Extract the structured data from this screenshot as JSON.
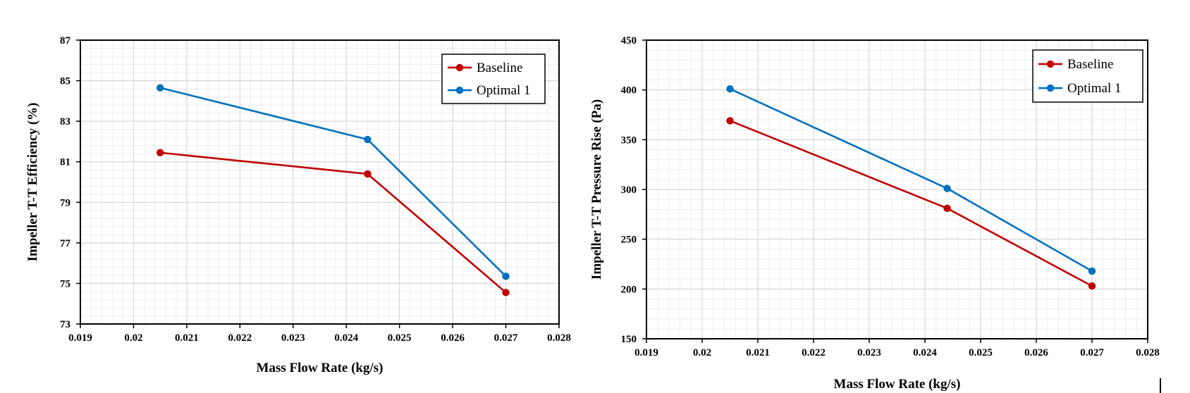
{
  "chart_data": [
    {
      "type": "line",
      "xlabel": "Mass Flow Rate (kg/s)",
      "ylabel": "Impeller T-T Efficiency (%)",
      "xlim": [
        0.019,
        0.028
      ],
      "ylim": [
        73,
        87
      ],
      "x_ticks": [
        "0.019",
        "0.02",
        "0.021",
        "0.022",
        "0.023",
        "0.024",
        "0.025",
        "0.026",
        "0.027",
        "0.028"
      ],
      "y_ticks": [
        "73",
        "75",
        "77",
        "79",
        "81",
        "83",
        "85",
        "87"
      ],
      "x": [
        0.0205,
        0.0244,
        0.027
      ],
      "series": [
        {
          "name": "Baseline",
          "color": "#c00000",
          "values": [
            81.45,
            80.4,
            74.55
          ]
        },
        {
          "name": "Optimal 1",
          "color": "#0070c0",
          "values": [
            84.65,
            82.1,
            75.35
          ]
        }
      ],
      "grid": true,
      "legend": "top-right"
    },
    {
      "type": "line",
      "xlabel": "Mass Flow Rate (kg/s)",
      "ylabel": "Impeller T-T Pressure Rise (Pa)",
      "xlim": [
        0.019,
        0.028
      ],
      "ylim": [
        150,
        450
      ],
      "x_ticks": [
        "0.019",
        "0.02",
        "0.021",
        "0.022",
        "0.023",
        "0.024",
        "0.025",
        "0.026",
        "0.027",
        "0.028"
      ],
      "y_ticks": [
        "150",
        "200",
        "250",
        "300",
        "350",
        "400",
        "450"
      ],
      "x": [
        0.0205,
        0.0244,
        0.027
      ],
      "series": [
        {
          "name": "Baseline",
          "color": "#c00000",
          "values": [
            369,
            281,
            203
          ]
        },
        {
          "name": "Optimal 1",
          "color": "#0070c0",
          "values": [
            401,
            301,
            218
          ]
        }
      ],
      "grid": true,
      "legend": "top-right"
    }
  ]
}
